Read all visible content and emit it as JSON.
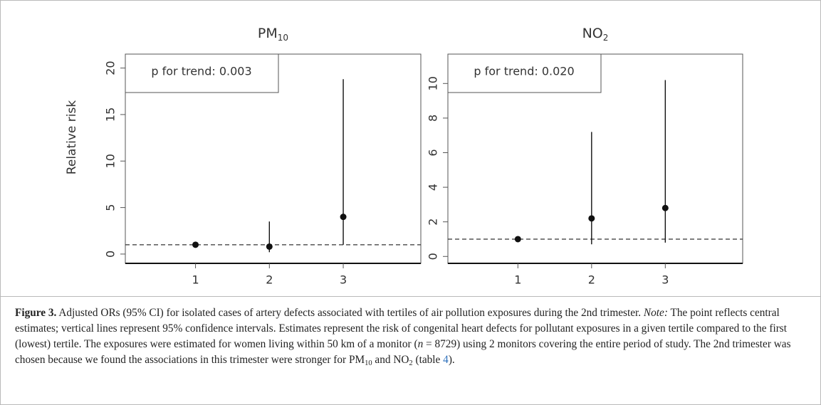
{
  "chart_data": [
    {
      "type": "errorbar",
      "title": "PM",
      "title_subscript": "10",
      "ylabel": "Relative risk",
      "annotation": "p for trend: 0.003",
      "x": [
        1,
        2,
        3
      ],
      "values": [
        1.0,
        0.8,
        4.0
      ],
      "lower": [
        1.0,
        0.2,
        1.0
      ],
      "upper": [
        1.0,
        3.5,
        18.8
      ],
      "color": "#111111",
      "hline": 1,
      "xlim": [
        0.05,
        4.05
      ],
      "xticks": [
        1,
        2,
        3
      ],
      "ylim": [
        -1,
        21.5
      ],
      "yticks": [
        0,
        5,
        10,
        15,
        20
      ]
    },
    {
      "type": "errorbar",
      "title": "NO",
      "title_subscript": "2",
      "annotation": "p for trend: 0.020",
      "x": [
        1,
        2,
        3
      ],
      "values": [
        1.0,
        2.2,
        2.8
      ],
      "lower": [
        1.0,
        0.7,
        0.8
      ],
      "upper": [
        1.0,
        7.2,
        10.2
      ],
      "color": "#111111",
      "hline": 1,
      "xlim": [
        0.05,
        4.05
      ],
      "xticks": [
        1,
        2,
        3
      ],
      "ylim": [
        -0.4,
        11.7
      ],
      "yticks": [
        0,
        2,
        4,
        6,
        8,
        10
      ]
    }
  ],
  "caption": {
    "label": "Figure 3.",
    "parts": [
      {
        "text": " Adjusted ORs (95% CI) for isolated cases of artery defects associated with tertiles of air pollution exposures during the 2nd trimester. ",
        "style": "normal"
      },
      {
        "text": "Note:",
        "style": "italic"
      },
      {
        "text": " The point reflects central estimates; vertical lines represent 95% confidence intervals. Estimates represent the risk of congenital heart defects for pollutant exposures in a given tertile compared to the first (lowest) tertile. The exposures were estimated for women living within 50 km of a monitor (",
        "style": "normal"
      },
      {
        "text": "n",
        "style": "italic"
      },
      {
        "text": " = 8729) using 2 monitors covering the entire period of study. The 2nd trimester was chosen because we found the associations in this trimester were stronger for PM",
        "style": "normal"
      },
      {
        "text": "10",
        "style": "sub"
      },
      {
        "text": " and NO",
        "style": "normal"
      },
      {
        "text": "2",
        "style": "sub"
      },
      {
        "text": " (table ",
        "style": "normal"
      },
      {
        "text": "4",
        "style": "link"
      },
      {
        "text": ").",
        "style": "normal"
      }
    ]
  }
}
